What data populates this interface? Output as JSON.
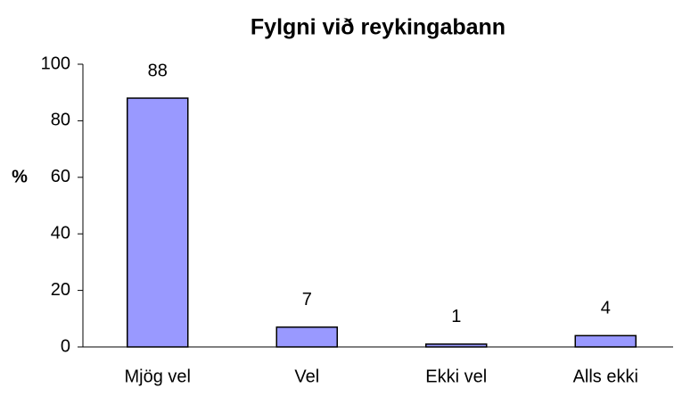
{
  "chart_data": {
    "type": "bar",
    "title": "Fylgni við reykingabann",
    "y_label": "%",
    "categories": [
      "Mjög vel",
      "Vel",
      "Ekki vel",
      "Alls ekki"
    ],
    "values": [
      88,
      7,
      1,
      4
    ],
    "color": "#9999ff",
    "ylim": [
      0,
      100
    ],
    "yticks": [
      0,
      20,
      40,
      60,
      80,
      100
    ],
    "grid": false,
    "data_labels": true
  }
}
